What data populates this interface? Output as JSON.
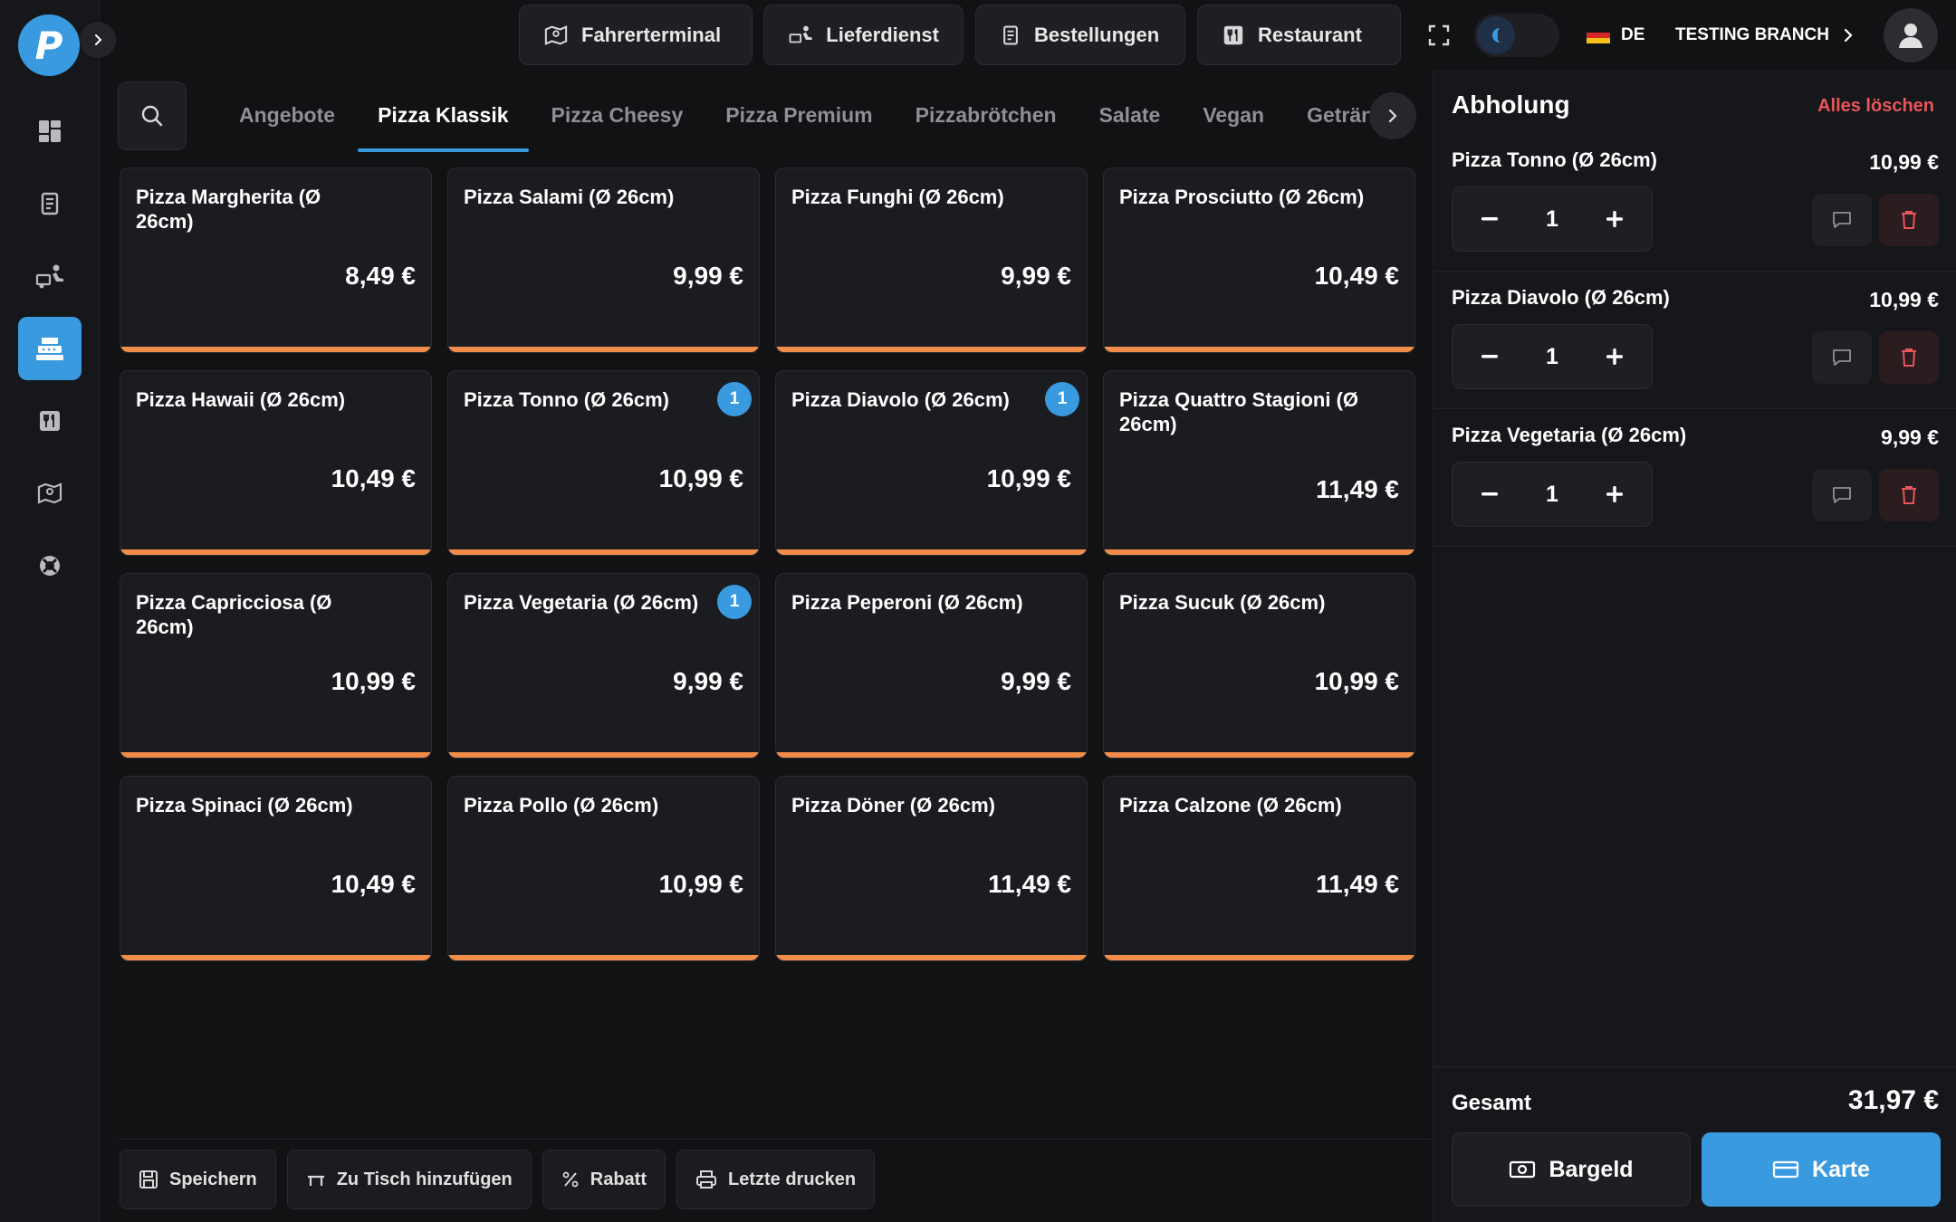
{
  "brand": {
    "logo_letter": "P",
    "accent": "#3a9ae0",
    "price_bar": "#f28c4a",
    "danger": "#e8555a"
  },
  "sidebar": {
    "items": [
      {
        "icon": "dashboard-icon",
        "active": false
      },
      {
        "icon": "receipt-icon",
        "active": false
      },
      {
        "icon": "delivery-icon",
        "active": false
      },
      {
        "icon": "cash-register-icon",
        "active": true
      },
      {
        "icon": "restaurant-icon",
        "active": false
      },
      {
        "icon": "map-icon",
        "active": false
      },
      {
        "icon": "support-icon",
        "active": false
      }
    ]
  },
  "topbar": {
    "buttons": [
      {
        "label": "Fahrerterminal",
        "icon": "map-pin-icon"
      },
      {
        "label": "Lieferdienst",
        "icon": "delivery-icon"
      },
      {
        "label": "Bestellungen",
        "icon": "receipt-icon"
      },
      {
        "label": "Restaurant",
        "icon": "restaurant-icon"
      }
    ],
    "language": "DE",
    "branch": "TESTING BRANCH"
  },
  "categories": {
    "tabs": [
      "Angebote",
      "Pizza Klassik",
      "Pizza Cheesy",
      "Pizza Premium",
      "Pizzabrötchen",
      "Salate",
      "Vegan",
      "Getränke"
    ],
    "active": "Pizza Klassik"
  },
  "products": [
    {
      "name": "Pizza Margherita (Ø 26cm)",
      "price": "8,49 €",
      "badge": ""
    },
    {
      "name": "Pizza Salami (Ø 26cm)",
      "price": "9,99 €",
      "badge": ""
    },
    {
      "name": "Pizza Funghi (Ø 26cm)",
      "price": "9,99 €",
      "badge": ""
    },
    {
      "name": "Pizza Prosciutto (Ø 26cm)",
      "price": "10,49 €",
      "badge": ""
    },
    {
      "name": "Pizza Hawaii (Ø 26cm)",
      "price": "10,49 €",
      "badge": ""
    },
    {
      "name": "Pizza Tonno (Ø 26cm)",
      "price": "10,99 €",
      "badge": "1"
    },
    {
      "name": "Pizza Diavolo (Ø 26cm)",
      "price": "10,99 €",
      "badge": "1"
    },
    {
      "name": "Pizza Quattro Stagioni (Ø 26cm)",
      "price": "11,49 €",
      "badge": ""
    },
    {
      "name": "Pizza Capricciosa (Ø 26cm)",
      "price": "10,99 €",
      "badge": ""
    },
    {
      "name": "Pizza Vegetaria (Ø 26cm)",
      "price": "9,99 €",
      "badge": "1"
    },
    {
      "name": "Pizza Peperoni (Ø 26cm)",
      "price": "9,99 €",
      "badge": ""
    },
    {
      "name": "Pizza Sucuk (Ø 26cm)",
      "price": "10,99 €",
      "badge": ""
    },
    {
      "name": "Pizza Spinaci (Ø 26cm)",
      "price": "10,49 €",
      "badge": ""
    },
    {
      "name": "Pizza Pollo (Ø 26cm)",
      "price": "10,99 €",
      "badge": ""
    },
    {
      "name": "Pizza Döner (Ø 26cm)",
      "price": "11,49 €",
      "badge": ""
    },
    {
      "name": "Pizza Calzone (Ø 26cm)",
      "price": "11,49 €",
      "badge": ""
    }
  ],
  "actions": [
    {
      "label": "Speichern",
      "icon": "save-icon"
    },
    {
      "label": "Zu Tisch hinzufügen",
      "icon": "table-icon"
    },
    {
      "label": "Rabatt",
      "icon": "percent-icon"
    },
    {
      "label": "Letzte drucken",
      "icon": "printer-icon"
    }
  ],
  "cart": {
    "title": "Abholung",
    "clear_label": "Alles löschen",
    "items": [
      {
        "name": "Pizza Tonno (Ø 26cm)",
        "price": "10,99 €",
        "qty": "1"
      },
      {
        "name": "Pizza Diavolo (Ø 26cm)",
        "price": "10,99 €",
        "qty": "1"
      },
      {
        "name": "Pizza Vegetaria (Ø 26cm)",
        "price": "9,99 €",
        "qty": "1"
      }
    ],
    "total_label": "Gesamt",
    "total_value": "31,97 €",
    "pay_cash": "Bargeld",
    "pay_card": "Karte"
  }
}
